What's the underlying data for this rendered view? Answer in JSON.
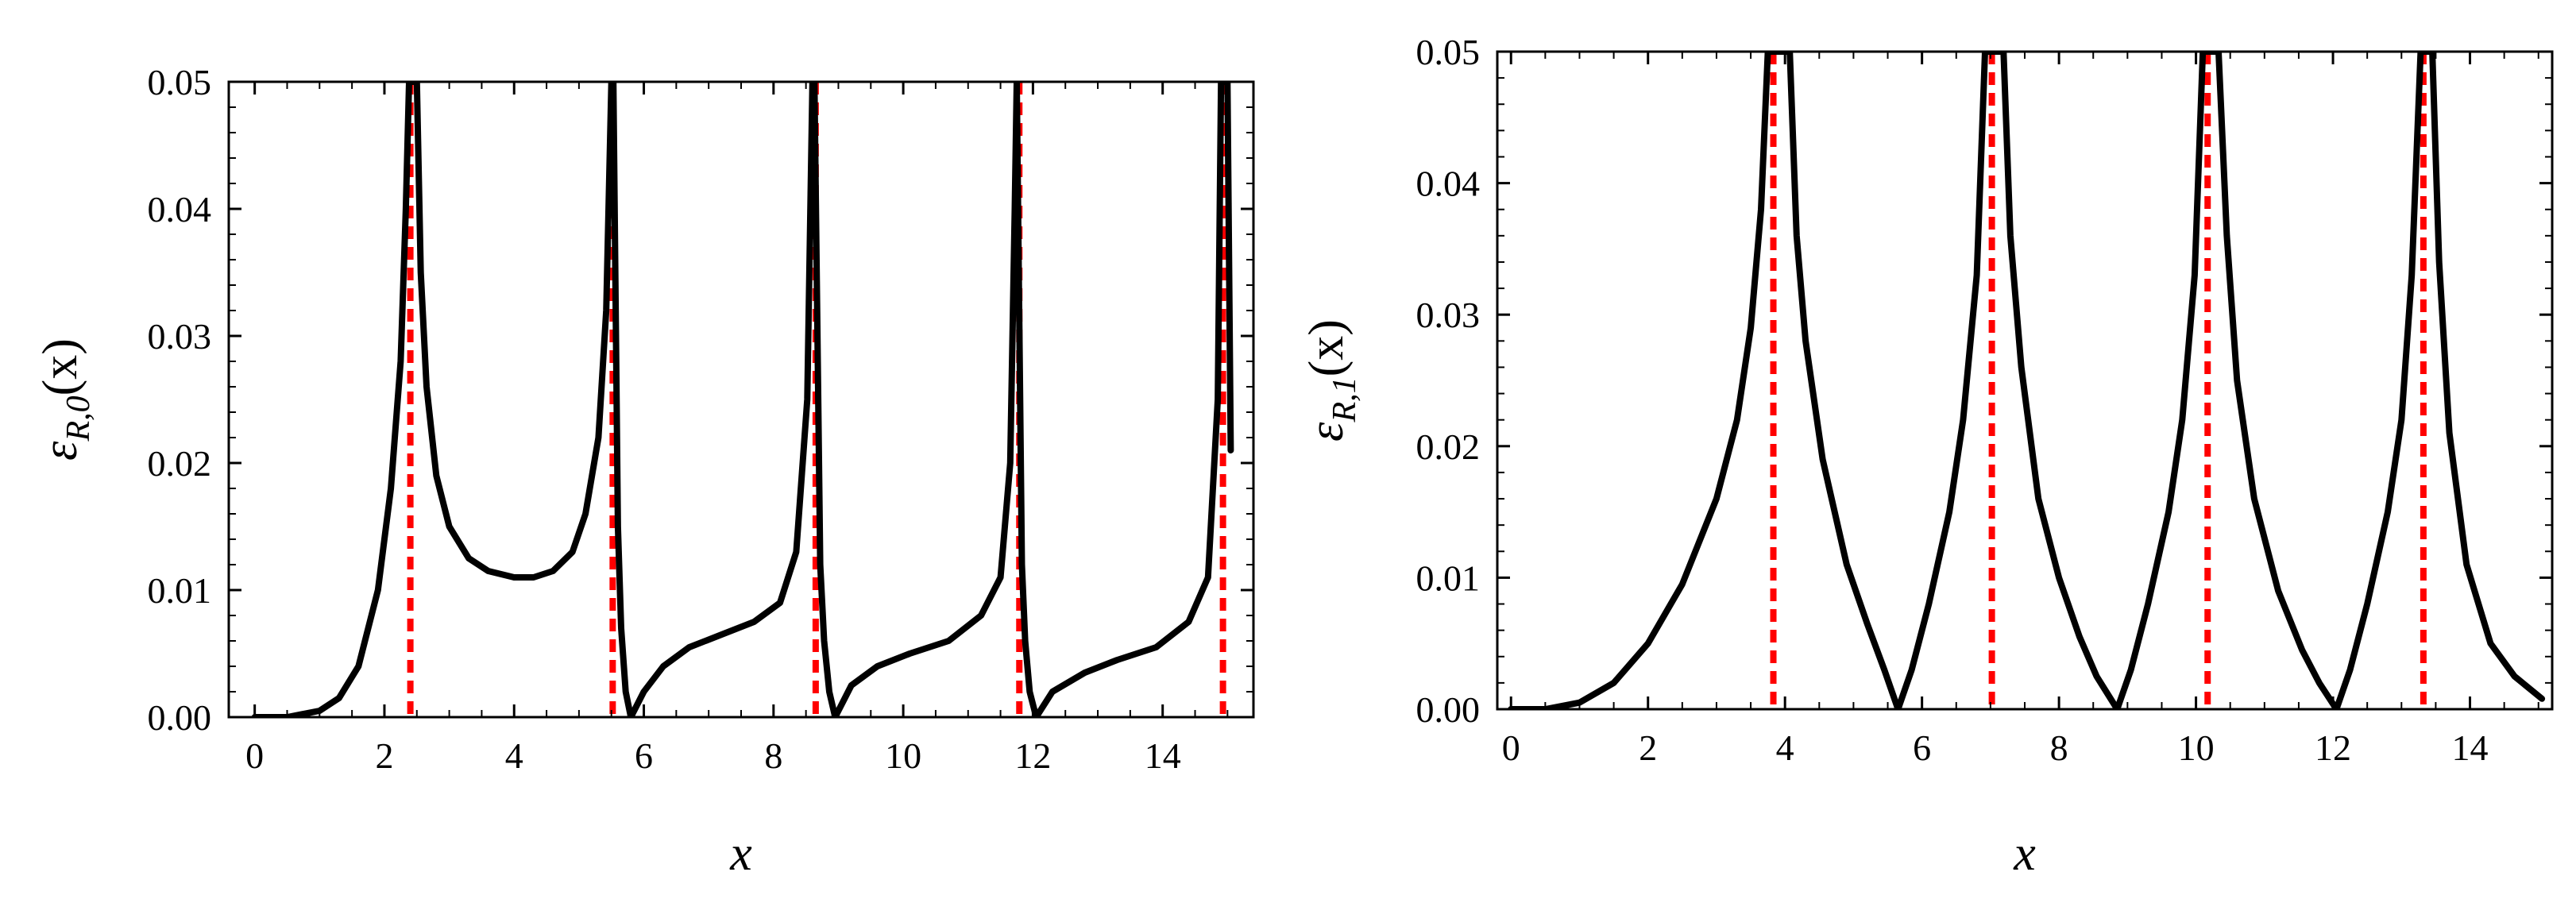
{
  "chart_data": [
    {
      "type": "line",
      "title": "",
      "xlabel": "x",
      "ylabel": "εR,0(x)",
      "ylabel_parts": {
        "sym": "ε",
        "sub": "R,0",
        "arg": "(x)"
      },
      "xlim": [
        -0.4,
        15.4
      ],
      "ylim": [
        0,
        0.05
      ],
      "xticks": [
        0,
        2,
        4,
        6,
        8,
        10,
        12,
        14
      ],
      "yticks": [
        0.0,
        0.01,
        0.02,
        0.03,
        0.04,
        0.05
      ],
      "ytick_labels": [
        "0.00",
        "0.01",
        "0.02",
        "0.03",
        "0.04",
        "0.05"
      ],
      "series": [
        {
          "name": "curve",
          "color": "#000000",
          "x": [
            0,
            0.5,
            1.0,
            1.3,
            1.6,
            1.9,
            2.1,
            2.25,
            2.33,
            2.38,
            2.5,
            2.56,
            2.65,
            2.8,
            3.0,
            3.3,
            3.6,
            4.0,
            4.3,
            4.6,
            4.9,
            5.1,
            5.3,
            5.42,
            5.5,
            5.53,
            5.6,
            5.65,
            5.72,
            5.8,
            6.0,
            6.3,
            6.7,
            7.2,
            7.7,
            8.1,
            8.35,
            8.52,
            8.6,
            8.63,
            8.72,
            8.78,
            8.86,
            8.95,
            9.2,
            9.6,
            10.1,
            10.7,
            11.2,
            11.5,
            11.65,
            11.72,
            11.75,
            11.83,
            11.88,
            11.95,
            12.05,
            12.3,
            12.8,
            13.3,
            13.9,
            14.4,
            14.7,
            14.85,
            14.9,
            15.0,
            15.05
          ],
          "y": [
            0,
            0,
            0.0005,
            0.0015,
            0.004,
            0.01,
            0.018,
            0.028,
            0.04,
            0.05,
            0.05,
            0.035,
            0.026,
            0.019,
            0.015,
            0.0125,
            0.0115,
            0.011,
            0.011,
            0.0115,
            0.013,
            0.016,
            0.022,
            0.032,
            0.05,
            0.05,
            0.015,
            0.007,
            0.002,
            0,
            0.002,
            0.004,
            0.0055,
            0.0065,
            0.0075,
            0.009,
            0.013,
            0.025,
            0.05,
            0.05,
            0.012,
            0.006,
            0.002,
            0,
            0.0025,
            0.004,
            0.005,
            0.006,
            0.008,
            0.011,
            0.02,
            0.04,
            0.05,
            0.012,
            0.006,
            0.002,
            0,
            0.002,
            0.0035,
            0.0045,
            0.0055,
            0.0075,
            0.011,
            0.025,
            0.05,
            0.05,
            0.021
          ]
        }
      ],
      "vlines": {
        "color": "#ff0000",
        "style": "dashed",
        "x": [
          2.4,
          5.52,
          8.65,
          11.79,
          14.93
        ]
      }
    },
    {
      "type": "line",
      "title": "",
      "xlabel": "x",
      "ylabel": "εR,1(x)",
      "ylabel_parts": {
        "sym": "ε",
        "sub": "R,1",
        "arg": "(x)"
      },
      "xlim": [
        -0.2,
        15.2
      ],
      "ylim": [
        0,
        0.05
      ],
      "xticks": [
        0,
        2,
        4,
        6,
        8,
        10,
        12,
        14
      ],
      "yticks": [
        0.0,
        0.01,
        0.02,
        0.03,
        0.04,
        0.05
      ],
      "ytick_labels": [
        "0.00",
        "0.01",
        "0.02",
        "0.03",
        "0.04",
        "0.05"
      ],
      "series": [
        {
          "name": "curve",
          "color": "#000000",
          "x": [
            0,
            0.5,
            1.0,
            1.5,
            2.0,
            2.5,
            3.0,
            3.3,
            3.5,
            3.65,
            3.75,
            4.07,
            4.17,
            4.3,
            4.55,
            4.9,
            5.2,
            5.45,
            5.65,
            5.85,
            6.1,
            6.4,
            6.6,
            6.8,
            6.92,
            7.19,
            7.29,
            7.45,
            7.7,
            8.0,
            8.3,
            8.55,
            8.85,
            9.05,
            9.3,
            9.6,
            9.8,
            9.98,
            10.1,
            10.33,
            10.45,
            10.6,
            10.85,
            11.2,
            11.55,
            11.8,
            12.05,
            12.25,
            12.5,
            12.8,
            13.0,
            13.15,
            13.28,
            13.45,
            13.55,
            13.7,
            13.95,
            14.3,
            14.65,
            15.05
          ],
          "y": [
            0,
            0,
            0.0005,
            0.002,
            0.005,
            0.0095,
            0.016,
            0.022,
            0.029,
            0.038,
            0.05,
            0.05,
            0.036,
            0.028,
            0.019,
            0.011,
            0.0065,
            0.003,
            0,
            0.003,
            0.008,
            0.015,
            0.022,
            0.033,
            0.05,
            0.05,
            0.036,
            0.026,
            0.016,
            0.01,
            0.0055,
            0.0025,
            0,
            0.003,
            0.008,
            0.015,
            0.022,
            0.033,
            0.05,
            0.05,
            0.036,
            0.025,
            0.016,
            0.009,
            0.0045,
            0.002,
            0,
            0.003,
            0.008,
            0.015,
            0.022,
            0.033,
            0.05,
            0.05,
            0.034,
            0.021,
            0.011,
            0.005,
            0.0025,
            0.0008
          ]
        }
      ],
      "vlines": {
        "color": "#ff0000",
        "style": "dashed",
        "x": [
          3.83,
          7.02,
          10.17,
          13.32
        ]
      }
    }
  ]
}
